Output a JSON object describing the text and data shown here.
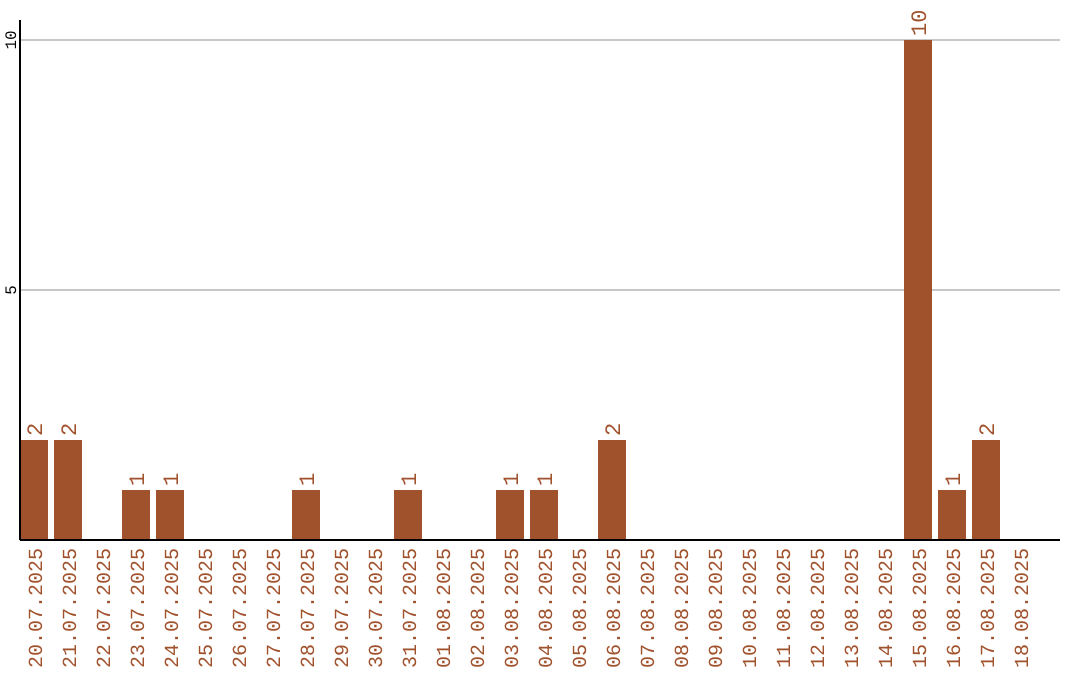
{
  "chart_data": {
    "type": "bar",
    "categories": [
      "20.07.2025",
      "21.07.2025",
      "22.07.2025",
      "23.07.2025",
      "24.07.2025",
      "25.07.2025",
      "26.07.2025",
      "27.07.2025",
      "28.07.2025",
      "29.07.2025",
      "30.07.2025",
      "31.07.2025",
      "01.08.2025",
      "02.08.2025",
      "03.08.2025",
      "04.08.2025",
      "05.08.2025",
      "06.08.2025",
      "07.08.2025",
      "08.08.2025",
      "09.08.2025",
      "10.08.2025",
      "11.08.2025",
      "12.08.2025",
      "13.08.2025",
      "14.08.2025",
      "15.08.2025",
      "16.08.2025",
      "17.08.2025",
      "18.08.2025"
    ],
    "values": [
      2,
      2,
      0,
      1,
      1,
      0,
      0,
      0,
      1,
      0,
      0,
      1,
      0,
      0,
      1,
      1,
      0,
      2,
      0,
      0,
      0,
      0,
      0,
      0,
      0,
      0,
      10,
      1,
      2,
      0
    ],
    "value_labels": [
      "2",
      "2",
      null,
      "1",
      "1",
      null,
      null,
      null,
      "1",
      null,
      null,
      "1",
      null,
      null,
      "1",
      "1",
      null,
      "2",
      null,
      null,
      null,
      null,
      null,
      null,
      null,
      null,
      "10",
      "1",
      "2",
      null
    ],
    "color": "#a0522d",
    "ylim": [
      0,
      10.4
    ],
    "yticks": [
      5,
      10
    ],
    "grid": "y"
  }
}
